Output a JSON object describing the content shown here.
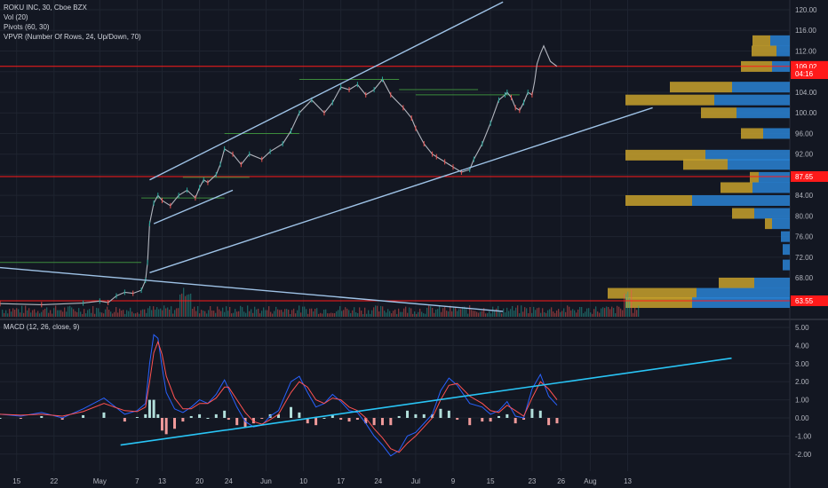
{
  "legend": {
    "title": "ROKU INC, 30, Cboe BZX",
    "vol": "Vol (20)",
    "pivots": "Pivots (60, 30)",
    "vpvr": "VPVR (Number Of Rows, 24, Up/Down, 70)",
    "macd": "MACD (12, 26, close, 9)"
  },
  "colors": {
    "background": "#131722",
    "grid": "#1f2430",
    "price_line": "#b2b5be",
    "up_candle": "#26a69a",
    "down_candle": "#ef5350",
    "trendline": "#9fc3e7",
    "macd_trendline": "#29c5f6",
    "level_red": "#ff1a1a",
    "pivot_green": "#3c8c3c",
    "vp_up": "#2a82d4",
    "vp_down": "#c8a12c",
    "macd_line": "#2962ff",
    "signal_line": "#ff5252",
    "hist_up": "#b2dfdb",
    "hist_down": "#ef9a9a"
  },
  "chart_data": {
    "type": "line",
    "symbol": "ROKU INC",
    "interval": "30",
    "exchange": "Cboe BZX",
    "x_tick_labels": [
      "15",
      "22",
      "May",
      "7",
      "13",
      "20",
      "24",
      "Jun",
      "10",
      "17",
      "24",
      "Jul",
      "9",
      "15",
      "23",
      "26",
      "Aug",
      "13"
    ],
    "price_axis": {
      "ticks": [
        "120.00",
        "116.00",
        "112.00",
        "108.00",
        "104.00",
        "100.00",
        "96.00",
        "92.00",
        "88.00",
        "84.00",
        "80.00",
        "76.00",
        "72.00",
        "68.00"
      ],
      "range": [
        64,
        121
      ]
    },
    "price_labels": [
      {
        "text": "109.02",
        "value": 109.02,
        "color": "#ff1a1a"
      },
      {
        "text": "04:16",
        "value": 107.6,
        "color": "#ff1a1a"
      },
      {
        "text": "87.65",
        "value": 87.65,
        "color": "#ff1a1a"
      },
      {
        "text": "63.55",
        "value": 63.55,
        "color": "#ff1a1a"
      }
    ],
    "price_series": {
      "name": "ROKU close",
      "x_day": [
        0,
        10,
        20,
        24,
        26,
        28,
        30,
        32,
        34,
        35,
        35.5,
        36,
        37,
        38,
        39,
        41,
        43,
        45,
        47,
        48,
        49,
        50,
        52,
        53,
        54,
        56,
        58,
        60,
        63,
        65,
        68,
        70,
        72,
        75,
        78,
        80,
        82,
        84,
        86,
        88,
        90,
        92,
        94,
        97,
        99,
        100,
        102,
        104,
        105,
        107,
        109,
        111,
        113,
        114,
        116,
        118,
        120,
        121.5,
        122,
        123,
        124,
        125,
        126,
        127,
        128
      ],
      "y": [
        63.0,
        62.8,
        63.1,
        63.5,
        63.2,
        64.5,
        65.2,
        65.0,
        65.6,
        67.5,
        71.0,
        78.5,
        82.5,
        84.0,
        83.0,
        82.0,
        84.0,
        85.0,
        83.5,
        85.5,
        87.0,
        86.5,
        88.0,
        90.0,
        93.0,
        92.0,
        90.0,
        92.0,
        91.0,
        92.5,
        94.0,
        96.5,
        100.0,
        102.5,
        100.0,
        102.0,
        105.0,
        104.5,
        105.5,
        103.5,
        104.5,
        106.5,
        103.5,
        101.0,
        99.0,
        97.0,
        94.0,
        92.0,
        91.5,
        90.5,
        89.5,
        88.5,
        89.0,
        91.0,
        94.0,
        98.0,
        102.5,
        103.5,
        104.0,
        103.0,
        101.0,
        100.5,
        102.0,
        104.0,
        103.5
      ]
    },
    "extension_series": {
      "x_day": [
        128,
        128.6,
        129.2,
        130,
        130.8,
        131.6,
        132.4,
        133.2,
        134
      ],
      "y": [
        103.5,
        106,
        109.5,
        111.5,
        113.0,
        111.5,
        110.0,
        109.5,
        109.02
      ]
    },
    "trendlines_price": [
      {
        "p1": [
          36,
          87.0
        ],
        "p2": [
          121,
          121.5
        ]
      },
      {
        "p1": [
          36,
          69.0
        ],
        "p2": [
          157,
          101.0
        ]
      },
      {
        "p1": [
          37,
          78.5
        ],
        "p2": [
          56,
          85.0
        ]
      },
      {
        "p1": [
          0,
          70.0
        ],
        "p2": [
          121,
          61.5
        ]
      }
    ],
    "price_levels": [
      109.02,
      87.65,
      63.55
    ],
    "vpvr": [
      {
        "price": 114.0,
        "up": 22,
        "down": 20
      },
      {
        "price": 112.0,
        "up": 15,
        "down": 28
      },
      {
        "price": 109.0,
        "up": 20,
        "down": 35
      },
      {
        "price": 105.0,
        "up": 65,
        "down": 70
      },
      {
        "price": 102.5,
        "up": 85,
        "down": 100
      },
      {
        "price": 100.0,
        "up": 60,
        "down": 40
      },
      {
        "price": 96.0,
        "up": 30,
        "down": 25
      },
      {
        "price": 91.8,
        "up": 95,
        "down": 90
      },
      {
        "price": 90.0,
        "up": 70,
        "down": 50
      },
      {
        "price": 87.5,
        "up": 35,
        "down": 10
      },
      {
        "price": 85.5,
        "up": 42,
        "down": 36
      },
      {
        "price": 83.0,
        "up": 110,
        "down": 75
      },
      {
        "price": 80.5,
        "up": 40,
        "down": 25
      },
      {
        "price": 78.5,
        "up": 20,
        "down": 8
      },
      {
        "price": 76.0,
        "up": 10,
        "down": 0
      },
      {
        "price": 73.5,
        "up": 8,
        "down": 0
      },
      {
        "price": 70.5,
        "up": 8,
        "down": 0
      },
      {
        "price": 67.0,
        "up": 40,
        "down": 40
      },
      {
        "price": 65.0,
        "up": 105,
        "down": 100
      },
      {
        "price": 63.2,
        "up": 110,
        "down": 75
      }
    ],
    "macd_axis": {
      "ticks": [
        "5.00",
        "4.00",
        "3.00",
        "2.00",
        "1.00",
        "0.00",
        "-1.00",
        "-2.00"
      ],
      "range": [
        -2.7,
        5.5
      ]
    },
    "macd_series": {
      "x_day": [
        0,
        5,
        10,
        15,
        20,
        25,
        30,
        33,
        35,
        36,
        37,
        38,
        39,
        40,
        42,
        44,
        46,
        48,
        50,
        52,
        54,
        55,
        57,
        59,
        61,
        63,
        65,
        67,
        70,
        72,
        74,
        76,
        78,
        80,
        82,
        84,
        86,
        88,
        90,
        92,
        94,
        96,
        98,
        100,
        102,
        104,
        106,
        108,
        110,
        113,
        116,
        118,
        120,
        122,
        124,
        126,
        128,
        130,
        132,
        134
      ],
      "macd": [
        0.2,
        0.1,
        0.3,
        0.0,
        0.5,
        1.1,
        0.2,
        0.4,
        0.8,
        3.0,
        4.6,
        4.4,
        2.8,
        1.4,
        0.5,
        0.3,
        0.6,
        1.0,
        0.8,
        1.3,
        2.1,
        1.6,
        0.6,
        -0.2,
        -0.5,
        -0.4,
        0.1,
        0.4,
        2.0,
        2.3,
        1.4,
        0.6,
        0.8,
        1.3,
        0.9,
        0.4,
        0.3,
        -0.3,
        -1.0,
        -1.5,
        -2.1,
        -1.8,
        -1.0,
        -0.8,
        -0.3,
        0.2,
        1.5,
        2.2,
        1.8,
        0.8,
        0.6,
        0.2,
        0.4,
        0.9,
        0.1,
        0.0,
        1.6,
        2.4,
        1.2,
        0.7
      ],
      "signal": [
        0.2,
        0.15,
        0.2,
        0.1,
        0.35,
        0.8,
        0.4,
        0.35,
        0.6,
        2.0,
        3.6,
        4.2,
        3.5,
        2.3,
        1.1,
        0.5,
        0.5,
        0.8,
        0.8,
        1.1,
        1.7,
        1.7,
        1.0,
        0.3,
        -0.2,
        -0.35,
        -0.1,
        0.2,
        1.4,
        2.0,
        1.7,
        1.0,
        0.8,
        1.1,
        1.0,
        0.6,
        0.4,
        0.0,
        -0.6,
        -1.1,
        -1.7,
        -1.9,
        -1.4,
        -1.0,
        -0.5,
        0.0,
        1.0,
        1.8,
        1.9,
        1.2,
        0.8,
        0.4,
        0.3,
        0.7,
        0.4,
        0.1,
        1.1,
        2.0,
        1.6,
        1.0
      ]
    },
    "macd_trendline": {
      "p1": [
        29,
        -1.5
      ],
      "p2": [
        176,
        3.3
      ]
    }
  }
}
